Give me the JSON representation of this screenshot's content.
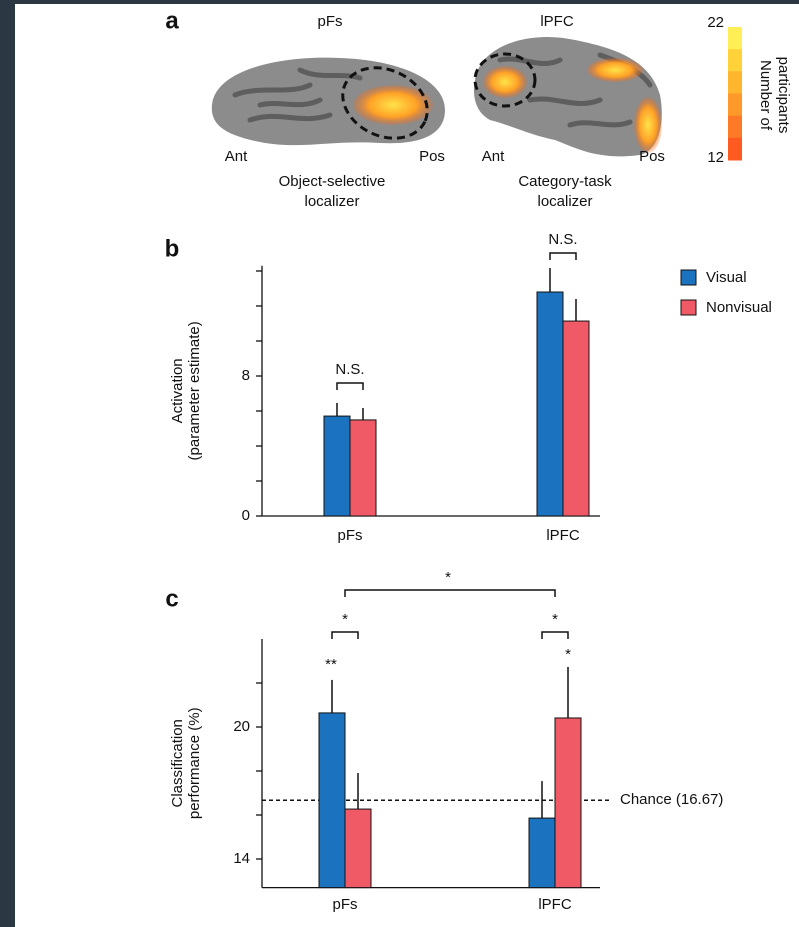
{
  "panel_a": {
    "panel_label": "a",
    "left_title": "pFs",
    "right_title": "lPFC",
    "left_ant": "Ant",
    "left_pos": "Pos",
    "right_ant": "Ant",
    "right_pos": "Pos",
    "left_caption": [
      "Object-selective",
      "localizer"
    ],
    "right_caption": [
      "Category-task",
      "localizer"
    ],
    "colorbar": {
      "label": [
        "Number of",
        "participants"
      ],
      "ticks": [
        22,
        12
      ],
      "colors": [
        "#ffee55",
        "#ffd23a",
        "#ffb52e",
        "#ff9a2a",
        "#ff7a26",
        "#ff5a20"
      ]
    }
  },
  "chart_data": [
    {
      "type": "bar",
      "panel_label": "b",
      "y_label": [
        "Activation",
        "(parameter estimate)"
      ],
      "categories": [
        "pFs",
        "lPFC"
      ],
      "series": [
        {
          "name": "Visual",
          "color": "#1b72bf",
          "values": [
            5.71,
            12.8
          ],
          "errors": [
            0.75,
            1.37
          ]
        },
        {
          "name": "Nonvisual",
          "color": "#ef5a66",
          "values": [
            5.49,
            11.14
          ],
          "errors": [
            0.68,
            1.26
          ]
        }
      ],
      "ylim": [
        0,
        14.3
      ],
      "yticks": [
        0,
        8
      ],
      "minor_yticks": [
        2,
        4,
        6,
        10,
        12,
        14
      ],
      "annotations": [
        "N.S.",
        "N.S."
      ],
      "legend": "upper right"
    },
    {
      "type": "bar",
      "panel_label": "c",
      "y_label": [
        "Classification",
        "performance (%)"
      ],
      "categories": [
        "pFs",
        "lPFC"
      ],
      "series": [
        {
          "name": "Visual",
          "color": "#1b72bf",
          "values": [
            20.64,
            15.86
          ],
          "errors": [
            1.5,
            1.68
          ]
        },
        {
          "name": "Nonvisual",
          "color": "#ef5a66",
          "values": [
            16.27,
            20.41
          ],
          "errors": [
            1.64,
            2.32
          ]
        }
      ],
      "ylim": [
        12.7,
        24
      ],
      "yticks": [
        14,
        20
      ],
      "minor_yticks": [
        16,
        18,
        22
      ],
      "chance": {
        "value": 16.67,
        "label": "Chance (16.67)"
      },
      "annotations": [
        "*",
        "*",
        "*",
        "**",
        "*"
      ]
    }
  ]
}
